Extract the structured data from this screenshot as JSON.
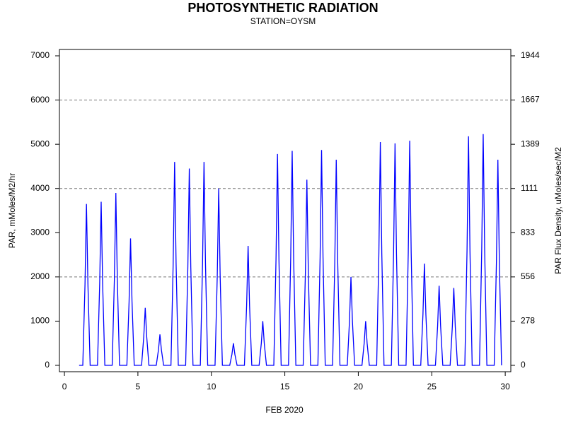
{
  "chart_data": {
    "type": "line",
    "title": "PHOTOSYNTHETIC RADIATION",
    "subtitle": "STATION=OYSM",
    "xlabel": "FEB 2020",
    "ylabel": "PAR, mMoles/M2/hr",
    "y2label": "PAR Flux Density, uMoles/sec/M2",
    "color": "#0000ff",
    "x": [
      1,
      1.25,
      1.4,
      1.5,
      1.6,
      1.75,
      2.25,
      2.4,
      2.5,
      2.6,
      2.75,
      3.25,
      3.4,
      3.5,
      3.6,
      3.75,
      4.25,
      4.4,
      4.5,
      4.6,
      4.75,
      5.25,
      5.4,
      5.5,
      5.6,
      5.75,
      6.25,
      6.4,
      6.5,
      6.6,
      6.75,
      7.25,
      7.4,
      7.5,
      7.6,
      7.75,
      8.25,
      8.4,
      8.5,
      8.6,
      8.75,
      9.25,
      9.4,
      9.5,
      9.6,
      9.75,
      10.25,
      10.4,
      10.5,
      10.6,
      10.75,
      11.25,
      11.4,
      11.5,
      11.6,
      11.75,
      12.25,
      12.4,
      12.5,
      12.6,
      12.75,
      13.25,
      13.4,
      13.5,
      13.6,
      13.75,
      14.25,
      14.4,
      14.5,
      14.6,
      14.75,
      15.25,
      15.4,
      15.5,
      15.6,
      15.75,
      16.25,
      16.4,
      16.5,
      16.6,
      16.75,
      17.25,
      17.4,
      17.5,
      17.6,
      17.75,
      18.25,
      18.4,
      18.5,
      18.6,
      18.75,
      19.25,
      19.4,
      19.5,
      19.6,
      19.75,
      20.25,
      20.4,
      20.5,
      20.6,
      20.75,
      21.25,
      21.4,
      21.5,
      21.6,
      21.75,
      22.25,
      22.4,
      22.5,
      22.6,
      22.75,
      23.25,
      23.4,
      23.5,
      23.6,
      23.75,
      24.25,
      24.4,
      24.5,
      24.6,
      24.75,
      25.25,
      25.4,
      25.5,
      25.6,
      25.75,
      26.25,
      26.4,
      26.5,
      26.6,
      26.75,
      27.25,
      27.4,
      27.5,
      27.6,
      27.75,
      28.25,
      28.4,
      28.5,
      28.6,
      28.75,
      29.25,
      29.4,
      29.5,
      29.6,
      29.75
    ],
    "values": [
      0,
      0,
      1825,
      3650,
      1825,
      0,
      0,
      1850,
      3700,
      1850,
      0,
      0,
      1950,
      3900,
      1950,
      0,
      0,
      1435,
      2870,
      1435,
      0,
      0,
      650,
      1300,
      650,
      0,
      0,
      350,
      700,
      350,
      0,
      0,
      2300,
      4600,
      2300,
      0,
      0,
      2225,
      4450,
      2225,
      0,
      0,
      2300,
      4600,
      2300,
      0,
      0,
      2000,
      4000,
      2000,
      0,
      0,
      250,
      500,
      250,
      0,
      0,
      1350,
      2700,
      1350,
      0,
      0,
      500,
      1000,
      500,
      0,
      0,
      2390,
      4780,
      2390,
      0,
      0,
      2425,
      4850,
      2425,
      0,
      0,
      2100,
      4200,
      2100,
      0,
      0,
      2435,
      4870,
      2435,
      0,
      0,
      2325,
      4650,
      2325,
      0,
      0,
      1000,
      2000,
      1000,
      0,
      0,
      500,
      1000,
      500,
      0,
      0,
      2525,
      5050,
      2525,
      0,
      0,
      2510,
      5020,
      2510,
      0,
      0,
      2540,
      5080,
      2540,
      0,
      0,
      1150,
      2300,
      1150,
      0,
      0,
      900,
      1800,
      900,
      0,
      0,
      875,
      1750,
      875,
      0,
      0,
      2590,
      5180,
      2590,
      0,
      0,
      2615,
      5230,
      2615,
      0,
      0,
      2325,
      4650,
      2325,
      0
    ],
    "xlim": [
      -0.34,
      30.38
    ],
    "xticks": [
      0,
      5,
      10,
      15,
      20,
      25,
      30
    ],
    "ylim": [
      -144,
      7144
    ],
    "yticks": [
      0,
      1000,
      2000,
      3000,
      4000,
      5000,
      6000,
      7000
    ],
    "ygrid": [
      2000,
      4000,
      6000
    ],
    "y2lim": [
      -40,
      1984.44
    ],
    "y2ticks": [
      0,
      {
        "value": 277.78,
        "label": "278"
      },
      {
        "value": 555.56,
        "label": "556"
      },
      {
        "value": 833.33,
        "label": "833"
      },
      {
        "value": 1111.11,
        "label": "1111"
      },
      {
        "value": 1388.89,
        "label": "1389"
      },
      {
        "value": 1666.67,
        "label": "1667"
      },
      {
        "value": 1944.44,
        "label": "1944"
      }
    ]
  }
}
